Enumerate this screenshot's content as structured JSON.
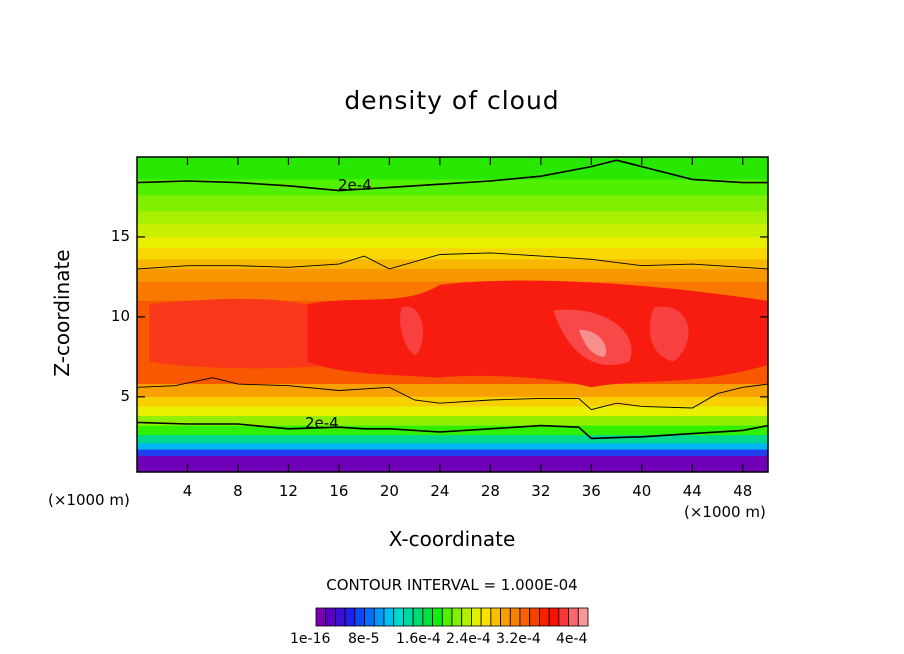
{
  "chart_data": {
    "type": "heatmap",
    "title": "density of cloud",
    "xlabel": "X-coordinate",
    "ylabel": "Z-coordinate",
    "x_unit_label": "(×1000 m)",
    "x_unit_label_right": "(×1000 m)",
    "xlim": [
      0,
      50
    ],
    "ylim": [
      0.3,
      20
    ],
    "xticks": [
      4,
      8,
      12,
      16,
      20,
      24,
      28,
      32,
      36,
      40,
      44,
      48
    ],
    "yticks": [
      5,
      10,
      15
    ],
    "contour_interval_text": "CONTOUR INTERVAL = 1.000E-04",
    "contour_labels": [
      "2e-4",
      "2e-4"
    ],
    "colorbar_labels": [
      "1e-16",
      "8e-5",
      "1.6e-4",
      "2.4e-4",
      "3.2e-4",
      "4e-4"
    ],
    "colorbar_colors": [
      "#7a00b0",
      "#5a00c8",
      "#3a10d8",
      "#2020e8",
      "#1048f0",
      "#0070f8",
      "#0098f8",
      "#00c0f0",
      "#00d8d0",
      "#00d8a0",
      "#00d870",
      "#00e040",
      "#10f010",
      "#50f000",
      "#80f000",
      "#b0f000",
      "#e0f000",
      "#f8e000",
      "#f8c000",
      "#f8a000",
      "#f88000",
      "#f86000",
      "#f84000",
      "#f82000",
      "#f81000",
      "#f83838",
      "#f86868",
      "#f89898"
    ],
    "series": [
      {
        "name": "2e-4",
        "x": [
          0,
          4,
          8,
          12,
          16,
          20,
          24,
          28,
          32,
          36,
          38,
          40,
          44,
          48,
          50
        ],
        "y": [
          18.4,
          18.5,
          18.4,
          18.2,
          17.9,
          18.1,
          18.3,
          18.5,
          18.8,
          19.4,
          19.8,
          19.4,
          18.6,
          18.4,
          18.4
        ]
      },
      {
        "name": "2e-4",
        "x": [
          0,
          4,
          8,
          12,
          16,
          18,
          20,
          24,
          28,
          32,
          35,
          36,
          40,
          44,
          48,
          50
        ],
        "y": [
          3.4,
          3.3,
          3.3,
          3.0,
          3.1,
          3.0,
          3.0,
          2.8,
          3.0,
          3.2,
          3.1,
          2.4,
          2.5,
          2.7,
          2.9,
          3.2
        ]
      }
    ]
  }
}
